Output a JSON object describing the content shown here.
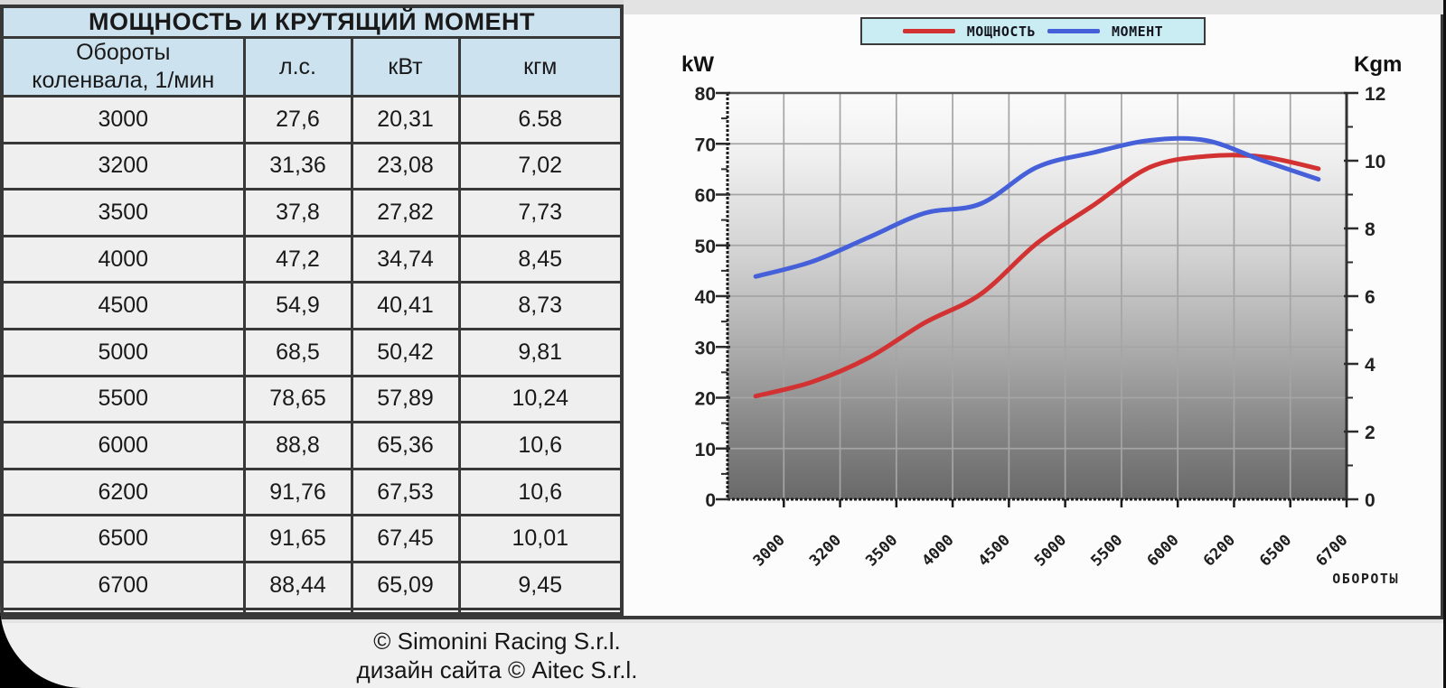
{
  "table": {
    "title": "МОЩНОСТЬ И КРУТЯЩИЙ МОМЕНТ",
    "columns": [
      "Обороты\nколенвала, 1/мин",
      "л.с.",
      "кВт",
      "кгм"
    ],
    "rows": [
      [
        "3000",
        "27,6",
        "20,31",
        "6.58"
      ],
      [
        "3200",
        "31,36",
        "23,08",
        "7,02"
      ],
      [
        "3500",
        "37,8",
        "27,82",
        "7,73"
      ],
      [
        "4000",
        "47,2",
        "34,74",
        "8,45"
      ],
      [
        "4500",
        "54,9",
        "40,41",
        "8,73"
      ],
      [
        "5000",
        "68,5",
        "50,42",
        "9,81"
      ],
      [
        "5500",
        "78,65",
        "57,89",
        "10,24"
      ],
      [
        "6000",
        "88,8",
        "65,36",
        "10,6"
      ],
      [
        "6200",
        "91,76",
        "67,53",
        "10,6"
      ],
      [
        "6500",
        "91,65",
        "67,45",
        "10,01"
      ],
      [
        "6700",
        "88,44",
        "65,09",
        "9,45"
      ],
      [
        "",
        "",
        "",
        ""
      ]
    ]
  },
  "chart_data": {
    "type": "line",
    "categories": [
      "3000",
      "3200",
      "3500",
      "4000",
      "4500",
      "5000",
      "5500",
      "6000",
      "6200",
      "6500",
      "6700"
    ],
    "series": [
      {
        "name": "МОЩНОСТЬ",
        "axis": "left",
        "unit": "kW",
        "color": "#d23232",
        "values": [
          20.31,
          23.08,
          27.82,
          34.74,
          40.41,
          50.42,
          57.89,
          65.36,
          67.53,
          67.45,
          65.09
        ]
      },
      {
        "name": "МОМЕНТ",
        "axis": "right",
        "unit": "Kgm",
        "color": "#4560d8",
        "values": [
          6.58,
          7.02,
          7.73,
          8.45,
          8.73,
          9.81,
          10.24,
          10.6,
          10.6,
          10.01,
          9.45
        ]
      }
    ],
    "left_axis": {
      "label": "kW",
      "min": 0,
      "max": 80,
      "ticks": [
        0,
        10,
        20,
        30,
        40,
        50,
        60,
        70,
        80
      ]
    },
    "right_axis": {
      "label": "Kgm",
      "min": 0,
      "max": 12,
      "ticks": [
        0,
        2,
        4,
        6,
        8,
        10,
        12
      ]
    },
    "xlabel": "ОБОРОТЫ",
    "legend_position": "top",
    "grid": true
  },
  "footer": {
    "line1": "© Simonini Racing S.r.l.",
    "line2": "дизайн сайта © Aitec S.r.l."
  },
  "colors": {
    "power_line": "#d23232",
    "torque_line": "#4560d8",
    "header_bg": "#cde2ef",
    "row_bg": "#efefef",
    "legend_bg": "#c9edf2",
    "border": "#383838",
    "grid_line": "#a5a5a5",
    "plot_gradient_top": "#fbfbfb",
    "plot_gradient_bottom": "#696969"
  }
}
